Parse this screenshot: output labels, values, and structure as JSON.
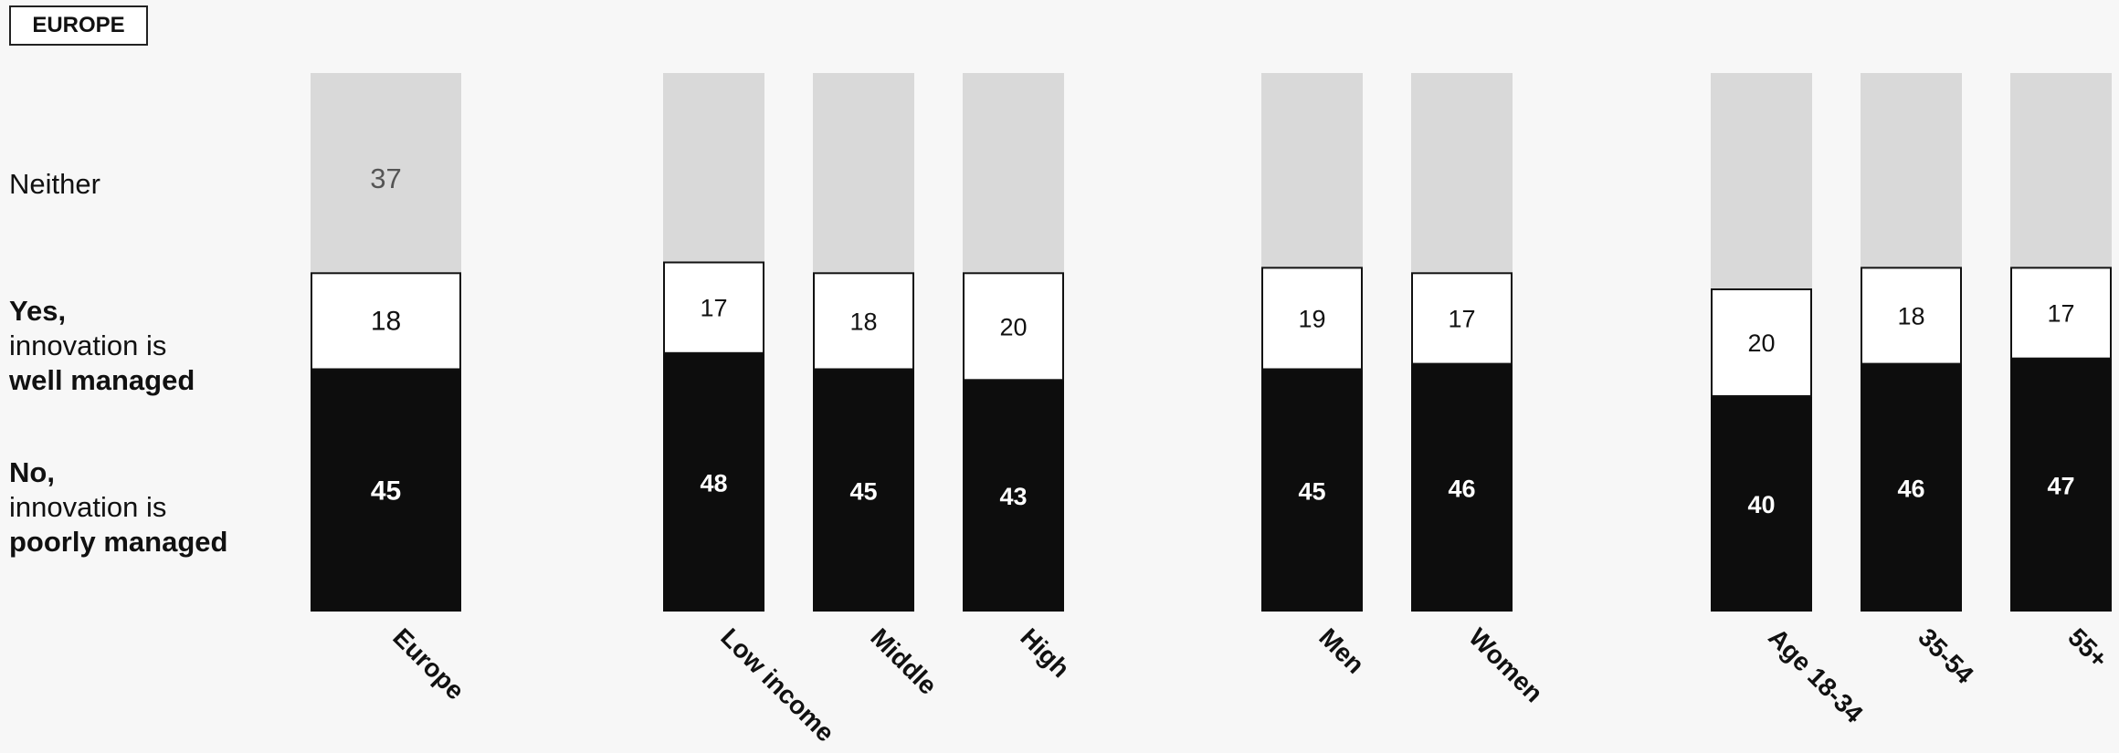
{
  "region_tag": "EUROPE",
  "legend": {
    "neither": "Neither",
    "yes_line1": "Yes,",
    "yes_line2": "innovation is",
    "yes_line3": "well managed",
    "no_line1": "No,",
    "no_line2": "innovation is",
    "no_line3": "poorly managed"
  },
  "colors": {
    "neither": "#d9d9d9",
    "yes": "#ffffff",
    "no": "#0d0d0d",
    "neither_label": "#555555",
    "yes_label": "#111111",
    "no_label": "#ffffff"
  },
  "chart_data": {
    "type": "bar",
    "stacked": true,
    "categories": [
      "Europe",
      "Low income",
      "Middle",
      "High",
      "Men",
      "Women",
      "Age 18-34",
      "35-54",
      "55+"
    ],
    "groups": [
      [
        "Europe"
      ],
      [
        "Low income",
        "Middle",
        "High"
      ],
      [
        "Men",
        "Women"
      ],
      [
        "Age 18-34",
        "35-54",
        "55+"
      ]
    ],
    "series": [
      {
        "name": "No, innovation is poorly managed",
        "values": [
          45,
          48,
          45,
          43,
          45,
          46,
          40,
          46,
          47
        ]
      },
      {
        "name": "Yes, innovation is well managed",
        "values": [
          18,
          17,
          18,
          20,
          19,
          17,
          20,
          18,
          17
        ]
      },
      {
        "name": "Neither",
        "values": [
          37,
          35,
          37,
          37,
          36,
          37,
          40,
          36,
          36
        ]
      }
    ],
    "visible_labels": {
      "No, innovation is poorly managed": [
        true,
        true,
        true,
        true,
        true,
        true,
        true,
        true,
        true
      ],
      "Yes, innovation is well managed": [
        true,
        true,
        true,
        true,
        true,
        true,
        true,
        true,
        true
      ],
      "Neither": [
        true,
        false,
        false,
        false,
        false,
        false,
        false,
        false,
        false
      ]
    },
    "ylim": [
      0,
      100
    ],
    "legend_position": "left"
  }
}
